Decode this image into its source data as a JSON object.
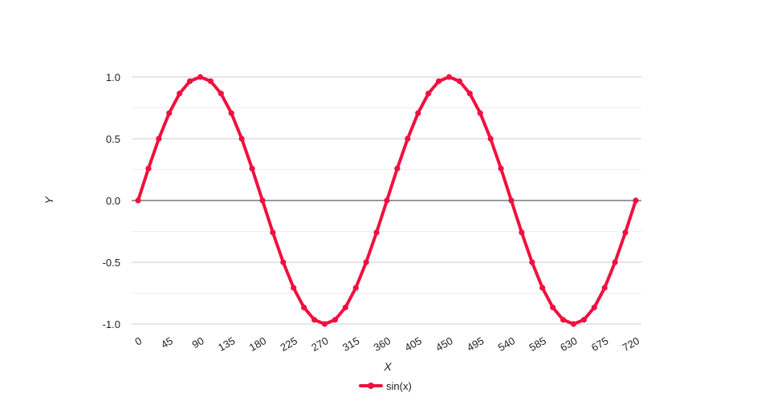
{
  "chart_data": {
    "type": "line",
    "title": "",
    "xlabel": "X",
    "ylabel": "Y",
    "xlim": [
      0,
      720
    ],
    "ylim": [
      -1,
      1
    ],
    "x_ticks": [
      "0",
      "45",
      "90",
      "135",
      "180",
      "225",
      "270",
      "315",
      "360",
      "405",
      "450",
      "495",
      "540",
      "585",
      "630",
      "675",
      "720"
    ],
    "y_ticks": [
      "1.0",
      "0.5",
      "0.0",
      "-0.5",
      "-1.0"
    ],
    "grid": true,
    "legend": "bottom-center",
    "series": [
      {
        "name": "sin(x)",
        "color": "#f0103f",
        "x": [
          0,
          15,
          30,
          45,
          60,
          75,
          90,
          105,
          120,
          135,
          150,
          165,
          180,
          195,
          210,
          225,
          240,
          255,
          270,
          285,
          300,
          315,
          330,
          345,
          360,
          375,
          390,
          405,
          420,
          435,
          450,
          465,
          480,
          495,
          510,
          525,
          540,
          555,
          570,
          585,
          600,
          615,
          630,
          645,
          660,
          675,
          690,
          705,
          720
        ],
        "y": [
          0,
          0.259,
          0.5,
          0.707,
          0.866,
          0.966,
          1,
          0.966,
          0.866,
          0.707,
          0.5,
          0.259,
          0,
          -0.259,
          -0.5,
          -0.707,
          -0.866,
          -0.966,
          -1,
          -0.966,
          -0.866,
          -0.707,
          -0.5,
          -0.259,
          0,
          0.259,
          0.5,
          0.707,
          0.866,
          0.966,
          1,
          0.966,
          0.866,
          0.707,
          0.5,
          0.259,
          0,
          -0.259,
          -0.5,
          -0.707,
          -0.866,
          -0.966,
          -1,
          -0.966,
          -0.866,
          -0.707,
          -0.5,
          -0.259,
          0
        ]
      }
    ]
  }
}
